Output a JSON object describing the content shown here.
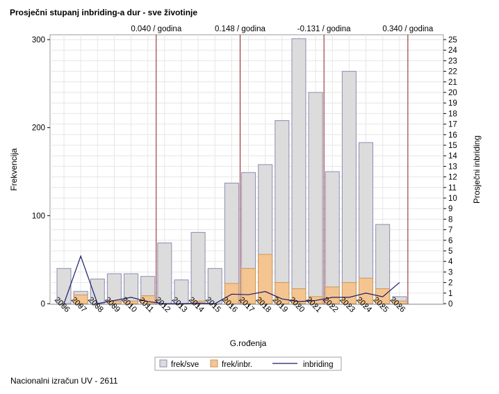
{
  "chart_data": {
    "type": "bar",
    "title": "Prosječni stupanj inbriding-a dur - sve životinje",
    "xlabel": "G.rođenja",
    "ylabel": "Frekvencija",
    "y2label": "Prosječni inbriding",
    "categories": [
      "2006",
      "2007",
      "2008",
      "2009",
      "2010",
      "2011",
      "2012",
      "2013",
      "2014",
      "2015",
      "2016",
      "2017",
      "2018",
      "2019",
      "2020",
      "2021",
      "2022",
      "2023",
      "2024",
      "2025",
      "2026"
    ],
    "ylim": [
      0,
      300
    ],
    "yticks": [
      0,
      100,
      200,
      300
    ],
    "y2lim": [
      0,
      25
    ],
    "y2ticks": [
      0,
      1,
      2,
      3,
      4,
      5,
      6,
      7,
      8,
      9,
      10,
      11,
      12,
      13,
      14,
      15,
      16,
      17,
      18,
      19,
      20,
      21,
      22,
      23,
      24,
      25
    ],
    "grid": true,
    "legend_placement": "bottom-center",
    "series": [
      {
        "name": "frek/sve",
        "kind": "bar",
        "color": "#dcdcdc",
        "edge": "#8c8cb4",
        "values": [
          40,
          14,
          28,
          34,
          34,
          31,
          69,
          27,
          81,
          40,
          137,
          149,
          158,
          208,
          301,
          240,
          150,
          264,
          183,
          90,
          8
        ]
      },
      {
        "name": "frek/inbr.",
        "kind": "bar",
        "color": "#f4c591",
        "edge": "#c8965a",
        "values": [
          0,
          10,
          0,
          3,
          3,
          9,
          0,
          0,
          3,
          0,
          23,
          40,
          56,
          24,
          17,
          8,
          19,
          24,
          29,
          17,
          3
        ]
      },
      {
        "name": "inbriding",
        "kind": "line",
        "color": "#1a1a6e",
        "axis": "y2",
        "values": [
          0,
          4.5,
          0,
          0.3,
          0.6,
          0.2,
          0,
          0,
          0.05,
          0,
          0.9,
          0.85,
          1.15,
          0.45,
          0.2,
          0.3,
          0.6,
          0.6,
          1.0,
          0.65,
          2.0
        ]
      }
    ],
    "annotations": [
      {
        "text": "0.040 / godina",
        "at": "2011.5"
      },
      {
        "text": "0.148 / godina",
        "at": "2016.5"
      },
      {
        "text": "-0.131 / godina",
        "at": "2021.5"
      },
      {
        "text": "0.340 / godina",
        "at": "2026.5"
      }
    ],
    "annotation_color": "#8b1a1a"
  },
  "footer": "Nacionalni izračun UV - 2611"
}
